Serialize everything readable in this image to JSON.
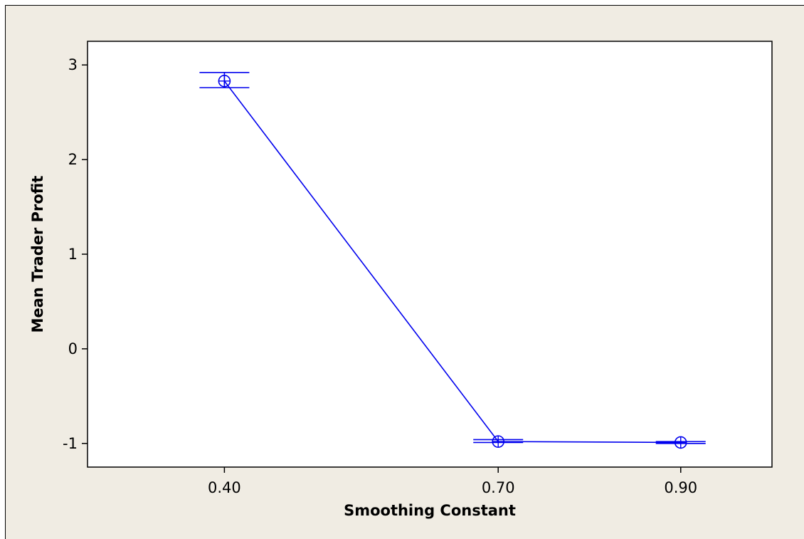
{
  "chart_data": {
    "type": "line",
    "title": "",
    "xlabel": "Smoothing Constant",
    "ylabel": "Mean Trader Profit",
    "categories": [
      "0.40",
      "0.70",
      "0.90"
    ],
    "x_numeric": [
      0.4,
      0.7,
      0.9
    ],
    "xlim": [
      0.25,
      1.0
    ],
    "ylim": [
      -1.25,
      3.25
    ],
    "yticks": [
      3,
      2,
      1,
      0,
      -1
    ],
    "ytick_labels": [
      "3",
      "2",
      "1",
      "0",
      "-1"
    ],
    "series": [
      {
        "values": [
          2.83,
          -0.98,
          -0.99
        ],
        "error_low": [
          2.76,
          -0.99,
          -1.0
        ],
        "error_high": [
          2.92,
          -0.96,
          -0.98
        ]
      }
    ],
    "grid": false,
    "legend": "none",
    "colors": {
      "series": "#0000ee",
      "plot_background": "#ffffff",
      "figure_background": "#f0ece3",
      "axes": "#000000"
    }
  }
}
